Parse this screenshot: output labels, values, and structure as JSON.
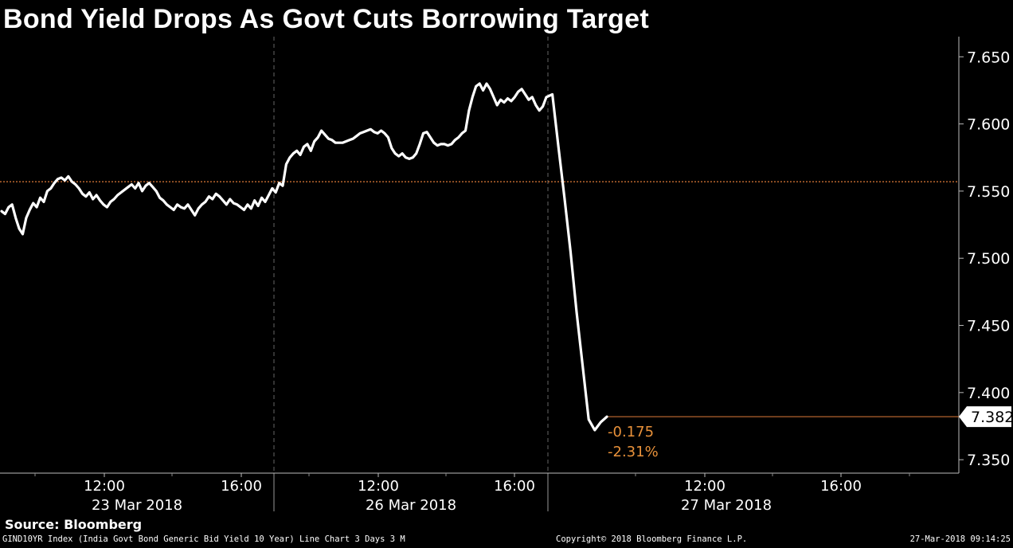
{
  "chart_data": {
    "type": "line",
    "title": "Bond Yield Drops As Govt Cuts Borrowing Target",
    "ylim": [
      7.34,
      7.665
    ],
    "yticks": [
      "7.650",
      "7.600",
      "7.550",
      "7.500",
      "7.450",
      "7.400",
      "7.350"
    ],
    "ytick_values": [
      7.65,
      7.6,
      7.55,
      7.5,
      7.45,
      7.4,
      7.35
    ],
    "x_time_labels": [
      "12:00",
      "16:00",
      "12:00",
      "16:00",
      "12:00",
      "16:00"
    ],
    "x_date_labels": [
      "23 Mar 2018",
      "26 Mar 2018",
      "27 Mar 2018"
    ],
    "reference_level": 7.557,
    "last_value": "7.382",
    "change_abs": "-0.175",
    "change_pct": "-2.31%",
    "series": [
      {
        "values": [
          7.535,
          7.533,
          7.538,
          7.54,
          7.53,
          7.522,
          7.518,
          7.53,
          7.536,
          7.541,
          7.538,
          7.545,
          7.542,
          7.55,
          7.552,
          7.556,
          7.559,
          7.56,
          7.558,
          7.561,
          7.557,
          7.555,
          7.552,
          7.548,
          7.546,
          7.549,
          7.544,
          7.547,
          7.543,
          7.54,
          7.538,
          7.542,
          7.544,
          7.547,
          7.549,
          7.551,
          7.553,
          7.555,
          7.552,
          7.556,
          7.55,
          7.554,
          7.556,
          7.553,
          7.55,
          7.545,
          7.543,
          7.54,
          7.538,
          7.536,
          7.54,
          7.538,
          7.537,
          7.54,
          7.536,
          7.532,
          7.537,
          7.54,
          7.542,
          7.546,
          7.544,
          7.548,
          7.546,
          7.543,
          7.54,
          7.544,
          7.541,
          7.54,
          7.538,
          7.536,
          7.54,
          7.537,
          7.543,
          7.539,
          7.545,
          7.542,
          7.547,
          7.552,
          7.549,
          7.556,
          7.554,
          7.57,
          7.575,
          7.578,
          7.58,
          7.577,
          7.583,
          7.585,
          7.58,
          7.587,
          7.59,
          7.595,
          7.592,
          7.589,
          7.588,
          7.586,
          7.586,
          7.586,
          7.587,
          7.588,
          7.589,
          7.591,
          7.593,
          7.594,
          7.595,
          7.596,
          7.594,
          7.593,
          7.595,
          7.593,
          7.59,
          7.582,
          7.578,
          7.576,
          7.578,
          7.575,
          7.574,
          7.575,
          7.578,
          7.585,
          7.593,
          7.594,
          7.59,
          7.586,
          7.584,
          7.585,
          7.585,
          7.584,
          7.585,
          7.588,
          7.59,
          7.593,
          7.595,
          7.61,
          7.62,
          7.628,
          7.63,
          7.625,
          7.63,
          7.626,
          7.62,
          7.614,
          7.618,
          7.616,
          7.619,
          7.617,
          7.62,
          7.624,
          7.626,
          7.622,
          7.618,
          7.62,
          7.614,
          7.61,
          7.613,
          7.62,
          7.622,
          7.583,
          7.545,
          7.505,
          7.46,
          7.42,
          7.38,
          7.372,
          7.378,
          7.382
        ]
      }
    ]
  },
  "source": "Source: Bloomberg",
  "footer": {
    "left": "GIND10YR Index (India Govt Bond Generic Bid Yield 10 Year) Line Chart 3 Days 3 M",
    "mid": "Copyright© 2018 Bloomberg Finance L.P.",
    "right": "27-Mar-2018 09:14:25"
  },
  "colors": {
    "background": "#000000",
    "line": "#ffffff",
    "reference": "#e07b39",
    "change_text": "#e8913a",
    "grid": "#555555"
  }
}
